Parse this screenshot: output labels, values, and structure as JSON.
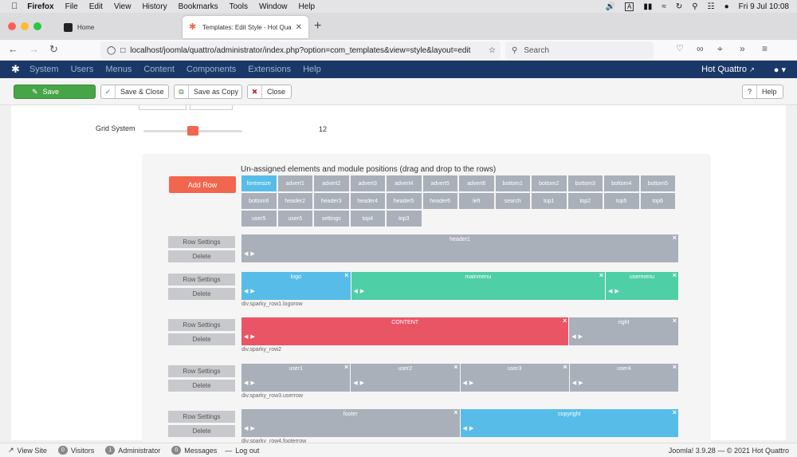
{
  "mac_menu": {
    "app": "Firefox",
    "items": [
      "File",
      "Edit",
      "View",
      "History",
      "Bookmarks",
      "Tools",
      "Window",
      "Help"
    ],
    "clock": "Fri 9 Jul  10:08"
  },
  "browser": {
    "tabs": [
      {
        "title": "Home"
      },
      {
        "title": "Templates: Edit Style - Hot Qua"
      }
    ],
    "url": "localhost/joomla/quattro/administrator/index.php?option=com_templates&view=style&layout=edit",
    "search_placeholder": "Search"
  },
  "joomla_nav": {
    "items": [
      "System",
      "Users",
      "Menus",
      "Content",
      "Components",
      "Extensions",
      "Help"
    ],
    "site_name": "Hot Quattro",
    "colors": {
      "nav_bg": "#1a3867",
      "accent": "#f0664e"
    }
  },
  "toolbar": {
    "save": "Save",
    "save_close": "Save & Close",
    "save_copy": "Save as Copy",
    "close": "Close",
    "help": "Help"
  },
  "grid": {
    "label": "Grid System",
    "value": 12,
    "value_text": "12",
    "max": 24
  },
  "layout_builder": {
    "heading": "Un-assigned elements and module positions (drag and drop to the rows)",
    "add_row": "Add Row",
    "row_settings": "Row Settings",
    "delete": "Delete",
    "positions": [
      "fontresize",
      "advert1",
      "advert2",
      "advert3",
      "advert4",
      "advert5",
      "advert6",
      "bottom1",
      "bottom2",
      "bottom3",
      "bottom4",
      "bottom5",
      "bottom6",
      "header2",
      "header3",
      "header4",
      "header5",
      "header6",
      "left",
      "search",
      "top1",
      "top2",
      "top5",
      "top6",
      "user5",
      "user6",
      "settings",
      "top4",
      "top3"
    ],
    "rows": [
      {
        "cells": [
          {
            "name": "header1",
            "color": "gray",
            "span": 12
          }
        ],
        "class": ""
      },
      {
        "cells": [
          {
            "name": "logo",
            "color": "blue",
            "span": 3
          },
          {
            "name": "mainmenu",
            "color": "green",
            "span": 7
          },
          {
            "name": "usermenu",
            "color": "green",
            "span": 2
          }
        ],
        "class": "div.sparky_row1.logorow"
      },
      {
        "cells": [
          {
            "name": "CONTENT",
            "color": "red",
            "span": 9
          },
          {
            "name": "right",
            "color": "gray",
            "span": 3
          }
        ],
        "class": "div.sparky_row2"
      },
      {
        "cells": [
          {
            "name": "user1",
            "color": "gray",
            "span": 3
          },
          {
            "name": "user2",
            "color": "gray",
            "span": 3
          },
          {
            "name": "user3",
            "color": "gray",
            "span": 3
          },
          {
            "name": "user4",
            "color": "gray",
            "span": 3
          }
        ],
        "class": "div.sparky_row3.userrow"
      },
      {
        "cells": [
          {
            "name": "footer",
            "color": "gray",
            "span": 6
          },
          {
            "name": "copyright",
            "color": "blue",
            "span": 6
          }
        ],
        "class": "div.sparky_row4.footerrow"
      }
    ]
  },
  "statusbar": {
    "view_site": "View Site",
    "visitors_count": "0",
    "visitors": "Visitors",
    "admin_count": "1",
    "administrator": "Administrator",
    "messages_count": "0",
    "messages": "Messages",
    "logout": "Log out",
    "version": "Joomla! 3.9.28  —  © 2021 Hot Quattro"
  }
}
